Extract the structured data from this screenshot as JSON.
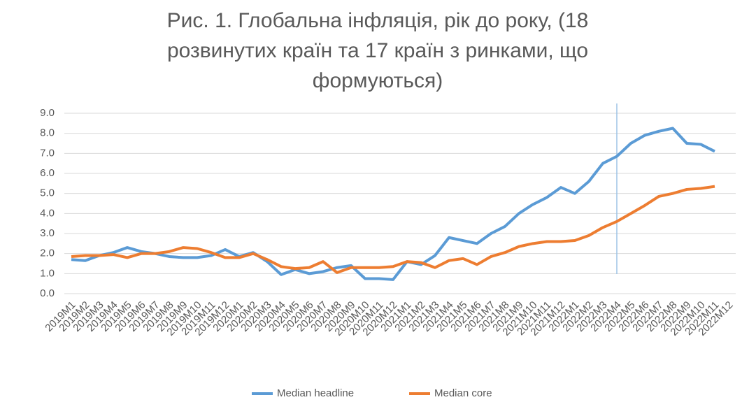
{
  "chart_data": {
    "type": "line",
    "title": "Рис. 1. Глобальна інфляція, рік до року, (18 розвинутих країн та 17 країн з ринками, що формуються)",
    "categories": [
      "2019M1",
      "2019M2",
      "2019M3",
      "2019M4",
      "2019M5",
      "2019M6",
      "2019M7",
      "2019M8",
      "2019M9",
      "2019M10",
      "2019M11",
      "2019M12",
      "2020M1",
      "2020M2",
      "2020M3",
      "2020M4",
      "2020M5",
      "2020M6",
      "2020M7",
      "2020M8",
      "2020M9",
      "2020M10",
      "2020M11",
      "2020M12",
      "2021M1",
      "2021M2",
      "2021M3",
      "2021M4",
      "2021M5",
      "2021M6",
      "2021M7",
      "2021M8",
      "2021M9",
      "2021M10",
      "2021M11",
      "2021M12",
      "2022M1",
      "2022M2",
      "2022M3",
      "2022M4",
      "2022M5",
      "2022M6",
      "2022M7",
      "2022M8",
      "2022M9",
      "2022M10",
      "2022M11",
      "2022M12"
    ],
    "series": [
      {
        "name": "Median headline",
        "color": "#5b9bd5",
        "values": [
          1.7,
          1.65,
          1.9,
          2.05,
          2.3,
          2.1,
          2.0,
          1.85,
          1.8,
          1.8,
          1.9,
          2.2,
          1.85,
          2.05,
          1.6,
          0.95,
          1.2,
          1.0,
          1.1,
          1.3,
          1.4,
          0.75,
          0.75,
          0.7,
          1.6,
          1.45,
          1.9,
          2.8,
          2.65,
          2.5,
          3.0,
          3.35,
          4.0,
          4.45,
          4.8,
          5.3,
          5.0,
          5.6,
          6.5,
          6.85,
          7.5,
          7.9,
          8.1,
          8.25,
          7.5,
          7.45,
          7.1,
          null
        ]
      },
      {
        "name": "Median core",
        "color": "#ed7d31",
        "values": [
          1.85,
          1.9,
          1.9,
          1.95,
          1.8,
          2.0,
          2.0,
          2.1,
          2.3,
          2.25,
          2.05,
          1.8,
          1.8,
          2.0,
          1.7,
          1.35,
          1.25,
          1.3,
          1.6,
          1.05,
          1.3,
          1.3,
          1.3,
          1.35,
          1.6,
          1.55,
          1.3,
          1.65,
          1.75,
          1.45,
          1.85,
          2.05,
          2.35,
          2.5,
          2.6,
          2.6,
          2.65,
          2.9,
          3.3,
          3.6,
          4.0,
          4.4,
          4.85,
          5.0,
          5.2,
          5.25,
          5.35,
          null
        ]
      }
    ],
    "ylim": [
      0,
      9
    ],
    "yticks": [
      {
        "value": 0,
        "label": "0.0"
      },
      {
        "value": 1,
        "label": "1.0"
      },
      {
        "value": 2,
        "label": "2.0"
      },
      {
        "value": 3,
        "label": "3.0"
      },
      {
        "value": 4,
        "label": "4.0"
      },
      {
        "value": 5,
        "label": "5.0"
      },
      {
        "value": 6,
        "label": "6.0"
      },
      {
        "value": 7,
        "label": "7.0"
      },
      {
        "value": 8,
        "label": "8.0"
      },
      {
        "value": 9,
        "label": "9.0"
      }
    ],
    "grid": true,
    "vline": "2022M4",
    "legend": "bottom"
  }
}
